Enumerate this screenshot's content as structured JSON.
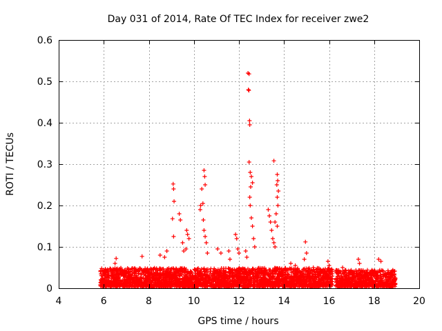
{
  "chart_data": {
    "type": "scatter",
    "title": "Day 031 of 2014, Rate Of TEC Index for receiver zwe2",
    "xlabel": "GPS time / hours",
    "ylabel": "ROTI / TECUs",
    "xlim": [
      4,
      20
    ],
    "ylim": [
      0,
      0.6
    ],
    "xticks": [
      4,
      6,
      8,
      10,
      12,
      14,
      16,
      18,
      20
    ],
    "yticks": [
      0,
      0.1,
      0.2,
      0.3,
      0.4,
      0.5,
      0.6
    ],
    "xtick_labels": [
      "4",
      "6",
      "8",
      "10",
      "12",
      "14",
      "16",
      "18",
      "20"
    ],
    "ytick_labels": [
      "0",
      "0.1",
      "0.2",
      "0.3",
      "0.4",
      "0.5",
      "0.6"
    ],
    "grid": true,
    "marker": "+",
    "color": "#ff0000",
    "series": [
      {
        "name": "ROTI",
        "points": [
          [
            9.08,
            0.252
          ],
          [
            9.1,
            0.24
          ],
          [
            9.12,
            0.21
          ],
          [
            9.05,
            0.168
          ],
          [
            9.1,
            0.125
          ],
          [
            9.35,
            0.18
          ],
          [
            9.4,
            0.165
          ],
          [
            9.5,
            0.11
          ],
          [
            9.55,
            0.09
          ],
          [
            9.68,
            0.14
          ],
          [
            9.72,
            0.13
          ],
          [
            9.78,
            0.12
          ],
          [
            9.65,
            0.095
          ],
          [
            10.28,
            0.19
          ],
          [
            10.3,
            0.2
          ],
          [
            10.35,
            0.24
          ],
          [
            10.4,
            0.205
          ],
          [
            10.45,
            0.285
          ],
          [
            10.48,
            0.27
          ],
          [
            10.5,
            0.25
          ],
          [
            10.42,
            0.165
          ],
          [
            10.45,
            0.14
          ],
          [
            10.5,
            0.125
          ],
          [
            10.55,
            0.11
          ],
          [
            10.6,
            0.085
          ],
          [
            11.85,
            0.13
          ],
          [
            11.9,
            0.12
          ],
          [
            11.95,
            0.095
          ],
          [
            12.0,
            0.085
          ],
          [
            12.4,
            0.52
          ],
          [
            12.45,
            0.518
          ],
          [
            12.42,
            0.48
          ],
          [
            12.44,
            0.478
          ],
          [
            12.47,
            0.405
          ],
          [
            12.48,
            0.395
          ],
          [
            12.45,
            0.305
          ],
          [
            12.5,
            0.28
          ],
          [
            12.55,
            0.27
          ],
          [
            12.6,
            0.255
          ],
          [
            12.52,
            0.245
          ],
          [
            12.48,
            0.22
          ],
          [
            12.5,
            0.2
          ],
          [
            12.55,
            0.17
          ],
          [
            12.6,
            0.15
          ],
          [
            12.65,
            0.12
          ],
          [
            12.7,
            0.1
          ],
          [
            12.3,
            0.09
          ],
          [
            12.35,
            0.075
          ],
          [
            13.3,
            0.19
          ],
          [
            13.35,
            0.175
          ],
          [
            13.4,
            0.16
          ],
          [
            13.45,
            0.14
          ],
          [
            13.55,
            0.308
          ],
          [
            13.7,
            0.275
          ],
          [
            13.72,
            0.26
          ],
          [
            13.68,
            0.25
          ],
          [
            13.75,
            0.235
          ],
          [
            13.7,
            0.22
          ],
          [
            13.73,
            0.2
          ],
          [
            13.65,
            0.18
          ],
          [
            13.6,
            0.16
          ],
          [
            13.7,
            0.15
          ],
          [
            13.5,
            0.12
          ],
          [
            13.55,
            0.11
          ],
          [
            13.6,
            0.1
          ],
          [
            14.95,
            0.112
          ],
          [
            15.0,
            0.085
          ],
          [
            14.9,
            0.07
          ],
          [
            15.3,
            0.05
          ],
          [
            6.55,
            0.072
          ],
          [
            6.5,
            0.06
          ],
          [
            7.7,
            0.077
          ],
          [
            8.5,
            0.08
          ],
          [
            8.7,
            0.075
          ],
          [
            8.8,
            0.09
          ],
          [
            11.05,
            0.095
          ],
          [
            11.2,
            0.085
          ],
          [
            11.55,
            0.09
          ],
          [
            11.6,
            0.07
          ],
          [
            16.6,
            0.05
          ],
          [
            17.3,
            0.07
          ],
          [
            17.35,
            0.06
          ],
          [
            18.2,
            0.07
          ],
          [
            18.3,
            0.065
          ],
          [
            15.95,
            0.065
          ],
          [
            16.0,
            0.055
          ],
          [
            14.3,
            0.06
          ],
          [
            14.5,
            0.055
          ]
        ]
      }
    ],
    "background_band": [
      {
        "x_range": [
          5.85,
          16.15
        ],
        "amplitude": 0.045
      },
      {
        "x_range": [
          16.3,
          18.95
        ],
        "amplitude": 0.04
      }
    ]
  }
}
